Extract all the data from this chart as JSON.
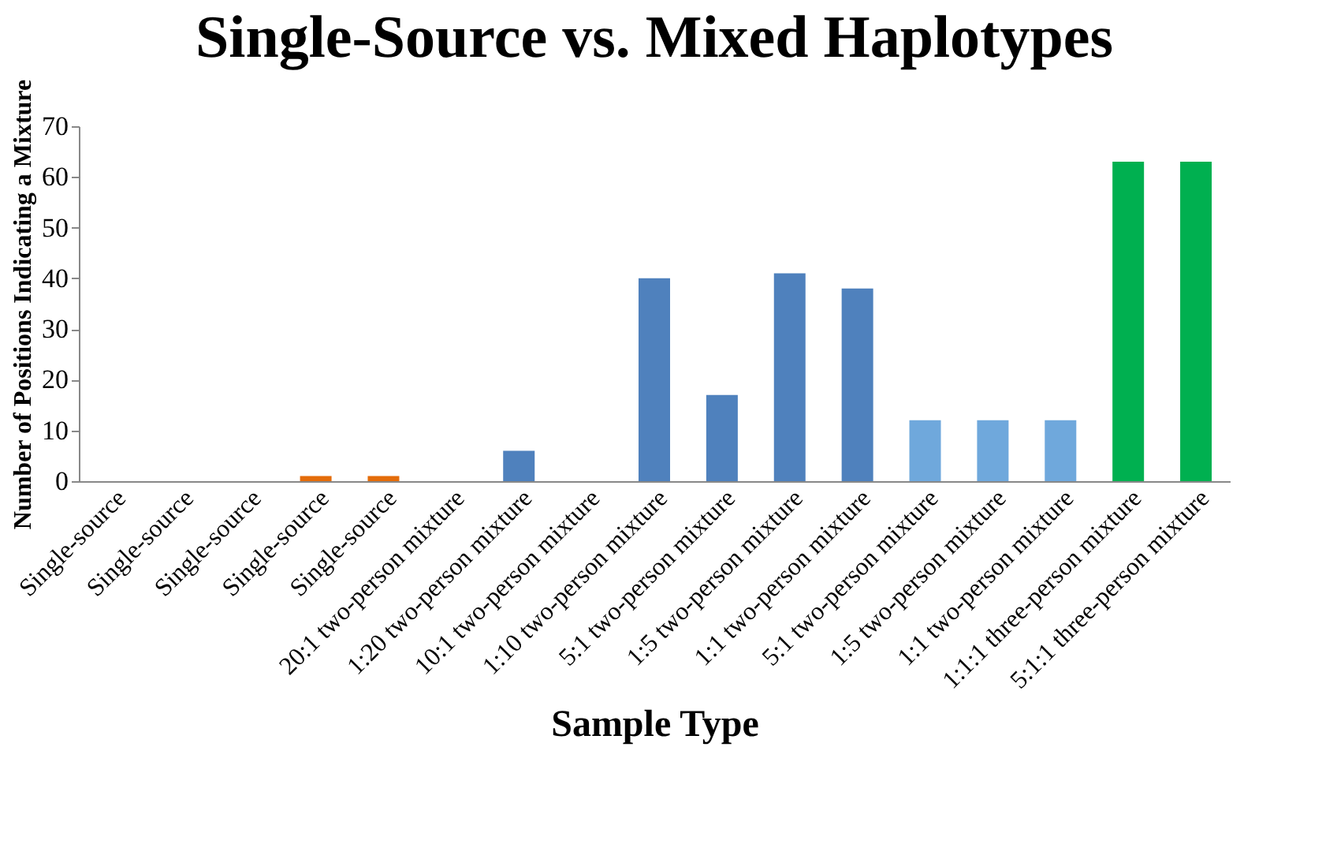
{
  "chart_data": {
    "type": "bar",
    "title": "Single-Source vs. Mixed Haplotypes",
    "xlabel": "Sample Type",
    "ylabel": "Number of Positions Indicating  a Mixture",
    "categories": [
      "Single-source",
      "Single-source",
      "Single-source",
      "Single-source",
      "Single-source",
      "20:1 two-person mixture",
      "1:20 two-person mixture",
      "10:1 two-person mixture",
      "1:10 two-person mixture",
      "5:1 two-person mixture",
      "1:5 two-person mixture",
      "1:1 two-person mixture",
      "5:1 two-person mixture",
      "1:5 two-person mixture",
      "1:1 two-person mixture",
      "1:1:1 three-person mixture",
      "5:1:1 three-person mixture"
    ],
    "values": [
      0,
      0,
      0,
      1,
      1,
      0,
      6,
      0,
      40,
      17,
      41,
      38,
      12,
      12,
      12,
      63,
      63
    ],
    "colors": [
      "#4f81bd",
      "#4f81bd",
      "#4f81bd",
      "#e46c0a",
      "#e46c0a",
      "#4f81bd",
      "#4f81bd",
      "#4f81bd",
      "#4f81bd",
      "#4f81bd",
      "#4f81bd",
      "#4f81bd",
      "#6fa8dc",
      "#6fa8dc",
      "#6fa8dc",
      "#00b050",
      "#00b050"
    ],
    "ylim": [
      0,
      70
    ],
    "yticks": [
      0,
      10,
      20,
      30,
      40,
      50,
      60,
      70
    ],
    "grid": false
  }
}
